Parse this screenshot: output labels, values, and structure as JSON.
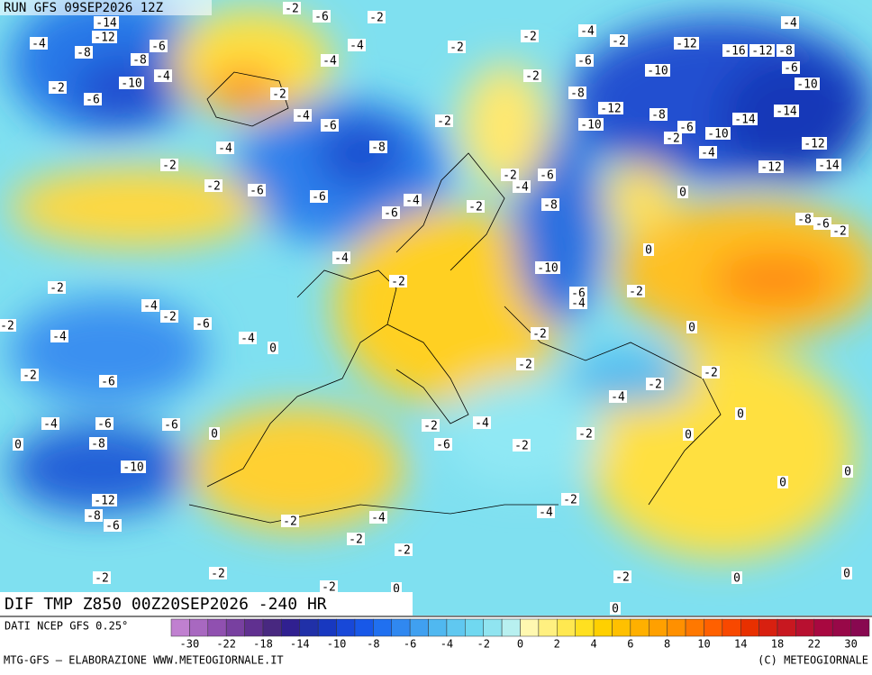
{
  "header": {
    "run": "RUN GFS 09SEP2026 12Z"
  },
  "footer": {
    "title": "DIF TMP Z850 00Z20SEP2026 -240 HR",
    "source": "DATI NCEP GFS 0.25°",
    "credit": "MTG-GFS — ELABORAZIONE WWW.METEOGIORNALE.IT",
    "copyright": "(C) METEOGIORNALE"
  },
  "colorbar": {
    "ticks": [
      -30,
      -22,
      -18,
      -14,
      -10,
      -8,
      -6,
      -4,
      -2,
      0,
      2,
      4,
      6,
      8,
      10,
      14,
      18,
      22,
      30
    ],
    "colors": [
      "#c080d0",
      "#a868c0",
      "#9050b0",
      "#7840a0",
      "#603090",
      "#482880",
      "#302090",
      "#2030a8",
      "#1838c0",
      "#1848d8",
      "#1858e8",
      "#2070f0",
      "#3088f0",
      "#40a0f0",
      "#50b8f0",
      "#60c8f0",
      "#70d8f0",
      "#90e4f0",
      "#b8f0f0",
      "#fff8b0",
      "#fff080",
      "#ffe850",
      "#ffe020",
      "#ffd000",
      "#ffc000",
      "#ffb000",
      "#ffa000",
      "#ff9000",
      "#ff7800",
      "#ff6000",
      "#f84800",
      "#e83000",
      "#d82010",
      "#c81820",
      "#b81030",
      "#a80840",
      "#980848",
      "#880850"
    ]
  },
  "map": {
    "contour_labels": [
      -14,
      -12,
      -4,
      -8,
      -6,
      -8,
      -4,
      -10,
      -2,
      -6,
      -2,
      -2,
      -6,
      -4,
      -2,
      -6,
      -2,
      -4,
      -4,
      -2,
      -4,
      -6,
      -8,
      -6,
      -4,
      -6,
      -2,
      -2,
      -2,
      -4,
      -2,
      -6,
      -2,
      -8,
      -12,
      -10,
      -10,
      -12,
      -8,
      -6,
      -2,
      -10,
      -4,
      -14,
      -16,
      -12,
      -8,
      -4,
      -6,
      -10,
      -14,
      -12,
      -12,
      -14,
      0,
      0,
      -8,
      -6,
      -2,
      -2,
      -4,
      -6,
      -8,
      -2,
      -10,
      -6,
      -4,
      -2,
      -4,
      -2,
      -2,
      -4,
      -2,
      -6,
      -2,
      -4,
      -4,
      0,
      -2,
      -6,
      0,
      -2,
      -2,
      -2,
      -2,
      -4,
      -4,
      -6,
      -6,
      -8,
      0,
      0,
      -10,
      -2,
      -4,
      -6,
      -2,
      -2,
      0,
      0,
      -12,
      -8,
      -6,
      -2,
      -4,
      -4,
      -2,
      -2,
      -2,
      0,
      0,
      -2,
      -2,
      -2,
      0,
      0,
      -2,
      0,
      0
    ]
  }
}
